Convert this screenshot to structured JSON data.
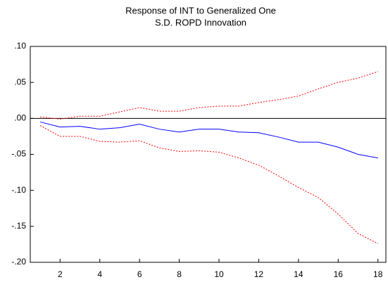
{
  "chart_data": {
    "type": "line",
    "title": "Response of INT to Generalized One",
    "subtitle": "S.D. ROPD Innovation",
    "x": [
      1,
      2,
      3,
      4,
      5,
      6,
      7,
      8,
      9,
      10,
      11,
      12,
      13,
      14,
      15,
      16,
      17,
      18
    ],
    "series": [
      {
        "color": "#0000ff",
        "dashed": false,
        "values": [
          -0.005,
          -0.012,
          -0.011,
          -0.015,
          -0.013,
          -0.008,
          -0.015,
          -0.019,
          -0.015,
          -0.015,
          -0.019,
          -0.02,
          -0.026,
          -0.033,
          -0.033,
          -0.04,
          -0.05,
          -0.055
        ]
      },
      {
        "color": "#ff0000",
        "dashed": true,
        "values": [
          0.002,
          -0.001,
          0.003,
          0.003,
          0.009,
          0.015,
          0.01,
          0.01,
          0.015,
          0.017,
          0.017,
          0.022,
          0.026,
          0.031,
          0.041,
          0.05,
          0.056,
          0.065
        ]
      },
      {
        "color": "#ff0000",
        "dashed": true,
        "values": [
          -0.01,
          -0.025,
          -0.025,
          -0.032,
          -0.033,
          -0.031,
          -0.041,
          -0.046,
          -0.045,
          -0.047,
          -0.055,
          -0.065,
          -0.08,
          -0.096,
          -0.11,
          -0.133,
          -0.16,
          -0.174
        ]
      }
    ],
    "xlim": [
      0.5,
      18.4
    ],
    "xticks": [
      2,
      4,
      6,
      8,
      10,
      12,
      14,
      16,
      18
    ],
    "ylim": [
      -0.2,
      0.1
    ],
    "yticks": [
      {
        "value": 0.1,
        "label": ".10"
      },
      {
        "value": 0.05,
        "label": ".05"
      },
      {
        "value": 0,
        "label": ".00"
      },
      {
        "value": -0.05,
        "label": "-.05"
      },
      {
        "value": -0.1,
        "label": "-.10"
      },
      {
        "value": -0.15,
        "label": "-.15"
      },
      {
        "value": -0.2,
        "label": "-.20"
      }
    ],
    "zero_line": true
  }
}
